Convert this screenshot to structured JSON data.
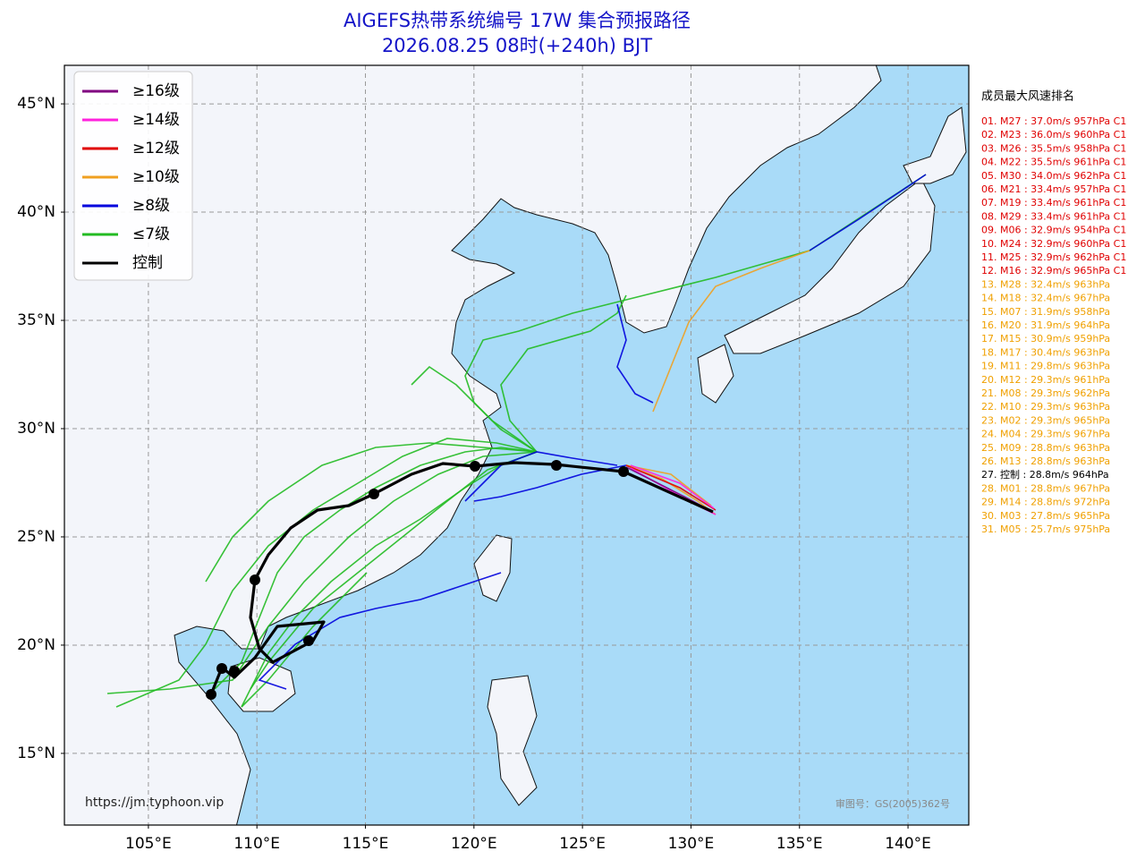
{
  "header": {
    "title": "AIGEFS热带系统编号 17W 集合预报路径",
    "subtitle": "2026.08.25 08时(+240h) BJT"
  },
  "map": {
    "lon_lim": [
      101.13,
      142.8
    ],
    "lat_lim": [
      11.69,
      46.78
    ],
    "lon_ticks": [
      {
        "value": 105,
        "label": "105°E"
      },
      {
        "value": 110,
        "label": "110°E"
      },
      {
        "value": 115,
        "label": "115°E"
      },
      {
        "value": 120,
        "label": "120°E"
      },
      {
        "value": 125,
        "label": "125°E"
      },
      {
        "value": 130,
        "label": "130°E"
      },
      {
        "value": 135,
        "label": "135°E"
      },
      {
        "value": 140,
        "label": "140°E"
      }
    ],
    "lat_ticks": [
      {
        "value": 15,
        "label": "15°N"
      },
      {
        "value": 20,
        "label": "20°N"
      },
      {
        "value": 25,
        "label": "25°N"
      },
      {
        "value": 30,
        "label": "30°N"
      },
      {
        "value": 35,
        "label": "35°N"
      },
      {
        "value": 40,
        "label": "40°N"
      },
      {
        "value": 45,
        "label": "45°N"
      }
    ],
    "grid": true,
    "land_color": "#f3f5fa",
    "sea_color": "#a9dbf8"
  },
  "legend": {
    "items": [
      {
        "name": "≥16级",
        "color": "#800080"
      },
      {
        "name": "≥14级",
        "color": "#ff22dd"
      },
      {
        "name": "≥12级",
        "color": "#e00000"
      },
      {
        "name": "≥10级",
        "color": "#f0a020"
      },
      {
        "name": "≥8级",
        "color": "#0000dd"
      },
      {
        "name": "≤7级",
        "color": "#22bb22"
      },
      {
        "name": "控制",
        "color": "#000000"
      }
    ]
  },
  "ranking": {
    "title": "成员最大风速排名",
    "entries": [
      {
        "text": "01. M27 : 37.0m/s 957hPa C1",
        "color": "#e00000"
      },
      {
        "text": "02. M23 : 36.0m/s 960hPa C1",
        "color": "#e00000"
      },
      {
        "text": "03. M26 : 35.5m/s 958hPa C1",
        "color": "#e00000"
      },
      {
        "text": "04. M22 : 35.5m/s 961hPa C1",
        "color": "#e00000"
      },
      {
        "text": "05. M30 : 34.0m/s 962hPa C1",
        "color": "#e00000"
      },
      {
        "text": "06. M21 : 33.4m/s 957hPa C1",
        "color": "#e00000"
      },
      {
        "text": "07. M19 : 33.4m/s 961hPa C1",
        "color": "#e00000"
      },
      {
        "text": "08. M29 : 33.4m/s 961hPa C1",
        "color": "#e00000"
      },
      {
        "text": "09. M06 : 32.9m/s 954hPa C1",
        "color": "#e00000"
      },
      {
        "text": "10. M24 : 32.9m/s 960hPa C1",
        "color": "#e00000"
      },
      {
        "text": "11. M25 : 32.9m/s 962hPa C1",
        "color": "#e00000"
      },
      {
        "text": "12. M16 : 32.9m/s 965hPa C1",
        "color": "#e00000"
      },
      {
        "text": "13. M28 : 32.4m/s 963hPa",
        "color": "#f0a000"
      },
      {
        "text": "14. M18 : 32.4m/s 967hPa",
        "color": "#f0a000"
      },
      {
        "text": "15. M07 : 31.9m/s 958hPa",
        "color": "#f0a000"
      },
      {
        "text": "16. M20 : 31.9m/s 964hPa",
        "color": "#f0a000"
      },
      {
        "text": "17. M15 : 30.9m/s 959hPa",
        "color": "#f0a000"
      },
      {
        "text": "18. M17 : 30.4m/s 963hPa",
        "color": "#f0a000"
      },
      {
        "text": "19. M11 : 29.8m/s 963hPa",
        "color": "#f0a000"
      },
      {
        "text": "20. M12 : 29.3m/s 961hPa",
        "color": "#f0a000"
      },
      {
        "text": "21. M08 : 29.3m/s 962hPa",
        "color": "#f0a000"
      },
      {
        "text": "22. M10 : 29.3m/s 963hPa",
        "color": "#f0a000"
      },
      {
        "text": "23. M02 : 29.3m/s 965hPa",
        "color": "#f0a000"
      },
      {
        "text": "24. M04 : 29.3m/s 967hPa",
        "color": "#f0a000"
      },
      {
        "text": "25. M09 : 28.8m/s 963hPa",
        "color": "#f0a000"
      },
      {
        "text": "26. M13 : 28.8m/s 963hPa",
        "color": "#f0a000"
      },
      {
        "text": "27. 控制 : 28.8m/s 964hPa",
        "color": "#000000"
      },
      {
        "text": "28. M01 : 28.8m/s 967hPa",
        "color": "#f0a000"
      },
      {
        "text": "29. M14 : 28.8m/s 972hPa",
        "color": "#f0a000"
      },
      {
        "text": "30. M03 : 27.8m/s 965hPa",
        "color": "#f0a000"
      },
      {
        "text": "31. M05 : 25.7m/s 975hPa",
        "color": "#f0a000"
      }
    ]
  },
  "footer": {
    "source": "https://jm.typhoon.vip",
    "approval": "审图号：GS(2005)362号"
  }
}
